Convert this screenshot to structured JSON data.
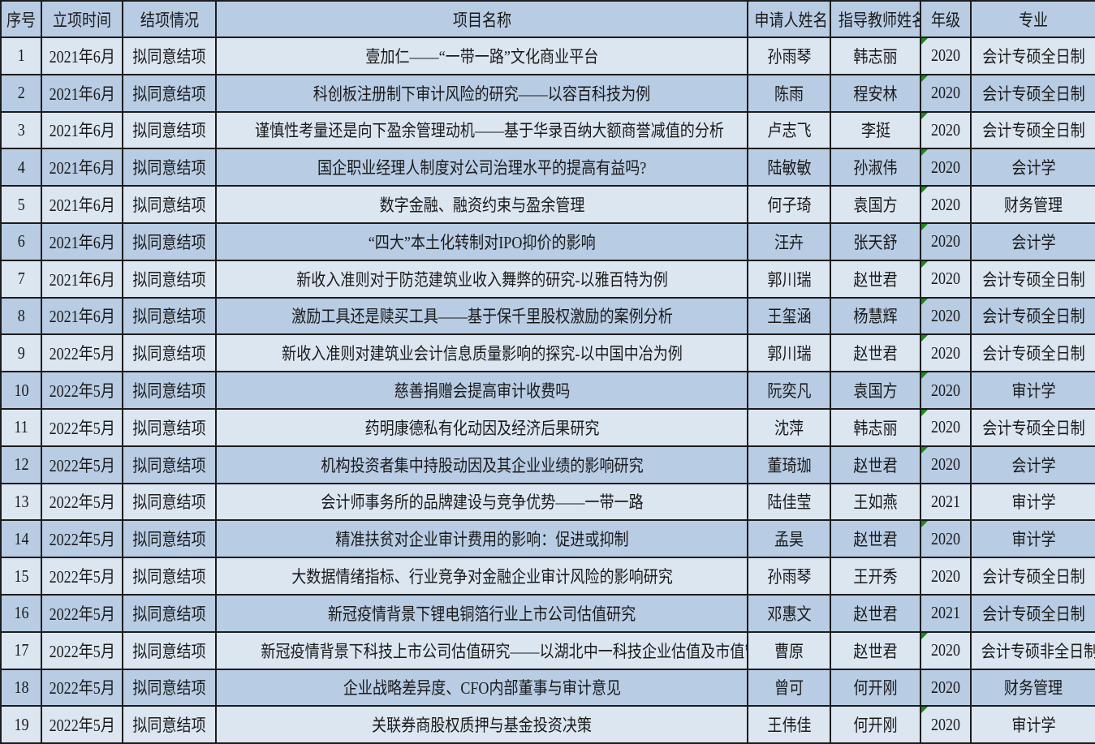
{
  "headers": [
    "序号",
    "立项时间",
    "结项情况",
    "项目名称",
    "申请人姓名",
    "指导教师姓名",
    "年级",
    "专业"
  ],
  "colors": {
    "header_bg": "#B8CCE4",
    "row_light": "#DCE6F1",
    "row_dark": "#B8CCE4",
    "error_indicator": "#1a8a1a"
  },
  "rows": [
    {
      "no": "1",
      "date": "2021年6月",
      "status": "拟同意结项",
      "title": "壹加仁——“一带一路”文化商业平台",
      "applicant": "孙雨琴",
      "advisor": "韩志丽",
      "grade": "2020",
      "major": "会计专硕全日制",
      "flag": true
    },
    {
      "no": "2",
      "date": "2021年6月",
      "status": "拟同意结项",
      "title": "科创板注册制下审计风险的研究——以容百科技为例",
      "applicant": "陈雨",
      "advisor": "程安林",
      "grade": "2020",
      "major": "会计专硕全日制",
      "flag": true
    },
    {
      "no": "3",
      "date": "2021年6月",
      "status": "拟同意结项",
      "title": "谨慎性考量还是向下盈余管理动机——基于华录百纳大额商誉减值的分析",
      "applicant": "卢志飞",
      "advisor": "李挺",
      "grade": "2020",
      "major": "会计专硕全日制",
      "flag": true
    },
    {
      "no": "4",
      "date": "2021年6月",
      "status": "拟同意结项",
      "title": "国企职业经理人制度对公司治理水平的提高有益吗?",
      "applicant": "陆敏敏",
      "advisor": "孙淑伟",
      "grade": "2020",
      "major": "会计学",
      "flag": true
    },
    {
      "no": "5",
      "date": "2021年6月",
      "status": "拟同意结项",
      "title": "数字金融、融资约束与盈余管理",
      "applicant": "何子琦",
      "advisor": "袁国方",
      "grade": "2020",
      "major": "财务管理",
      "flag": true
    },
    {
      "no": "6",
      "date": "2021年6月",
      "status": "拟同意结项",
      "title": "“四大”本土化转制对IPO抑价的影响",
      "applicant": "汪卉",
      "advisor": "张天舒",
      "grade": "2020",
      "major": "会计学",
      "flag": true
    },
    {
      "no": "7",
      "date": "2021年6月",
      "status": "拟同意结项",
      "title": "新收入准则对于防范建筑业收入舞弊的研究-以雅百特为例",
      "applicant": "郭川瑞",
      "advisor": "赵世君",
      "grade": "2020",
      "major": "会计专硕全日制",
      "flag": true
    },
    {
      "no": "8",
      "date": "2021年6月",
      "status": "拟同意结项",
      "title": "激励工具还是赎买工具——基于保千里股权激励的案例分析",
      "applicant": "王玺涵",
      "advisor": "杨慧辉",
      "grade": "2020",
      "major": "会计专硕全日制",
      "flag": true
    },
    {
      "no": "9",
      "date": "2022年5月",
      "status": "拟同意结项",
      "title": "新收入准则对建筑业会计信息质量影响的探究-以中国中冶为例",
      "applicant": "郭川瑞",
      "advisor": "赵世君",
      "grade": "2020",
      "major": "会计专硕全日制",
      "flag": true
    },
    {
      "no": "10",
      "date": "2022年5月",
      "status": "拟同意结项",
      "title": "慈善捐赠会提高审计收费吗",
      "applicant": "阮奕凡",
      "advisor": "袁国方",
      "grade": "2020",
      "major": "审计学",
      "flag": true
    },
    {
      "no": "11",
      "date": "2022年5月",
      "status": "拟同意结项",
      "title": "药明康德私有化动因及经济后果研究",
      "applicant": "沈萍",
      "advisor": "韩志丽",
      "grade": "2020",
      "major": "会计专硕全日制",
      "flag": true
    },
    {
      "no": "12",
      "date": "2022年5月",
      "status": "拟同意结项",
      "title": "机构投资者集中持股动因及其企业业绩的影响研究",
      "applicant": "董琦珈",
      "advisor": "赵世君",
      "grade": "2020",
      "major": "会计学",
      "flag": true
    },
    {
      "no": "13",
      "date": "2022年5月",
      "status": "拟同意结项",
      "title": "会计师事务所的品牌建设与竞争优势——一带一路",
      "applicant": "陆佳莹",
      "advisor": "王如燕",
      "grade": "2021",
      "major": "审计学",
      "flag": false
    },
    {
      "no": "14",
      "date": "2022年5月",
      "status": "拟同意结项",
      "title": "精准扶贫对企业审计费用的影响：促进或抑制",
      "applicant": "孟昊",
      "advisor": "赵世君",
      "grade": "2020",
      "major": "审计学",
      "flag": true
    },
    {
      "no": "15",
      "date": "2022年5月",
      "status": "拟同意结项",
      "title": "大数据情绪指标、行业竞争对金融企业审计风险的影响研究",
      "applicant": "孙雨琴",
      "advisor": "王开秀",
      "grade": "2020",
      "major": "会计专硕全日制",
      "flag": false
    },
    {
      "no": "16",
      "date": "2022年5月",
      "status": "拟同意结项",
      "title": "新冠疫情背景下锂电铜箔行业上市公司估值研究",
      "applicant": "邓惠文",
      "advisor": "赵世君",
      "grade": "2021",
      "major": "会计专硕全日制",
      "flag": false
    },
    {
      "no": "17",
      "date": "2022年5月",
      "status": "拟同意结项",
      "title": "新冠疫情背景下科技上市公司估值研究——以湖北中一科技企业估值及市值管理为例",
      "applicant": "曹原",
      "advisor": "赵世君",
      "grade": "2020",
      "major": "会计专硕非全日制",
      "flag": true
    },
    {
      "no": "18",
      "date": "2022年5月",
      "status": "拟同意结项",
      "title": "企业战略差异度、CFO内部董事与审计意见",
      "applicant": "曾可",
      "advisor": "何开刚",
      "grade": "2020",
      "major": "财务管理",
      "flag": false
    },
    {
      "no": "19",
      "date": "2022年5月",
      "status": "拟同意结项",
      "title": "关联券商股权质押与基金投资决策",
      "applicant": "王伟佳",
      "advisor": "何开刚",
      "grade": "2020",
      "major": "审计学",
      "flag": true
    }
  ]
}
